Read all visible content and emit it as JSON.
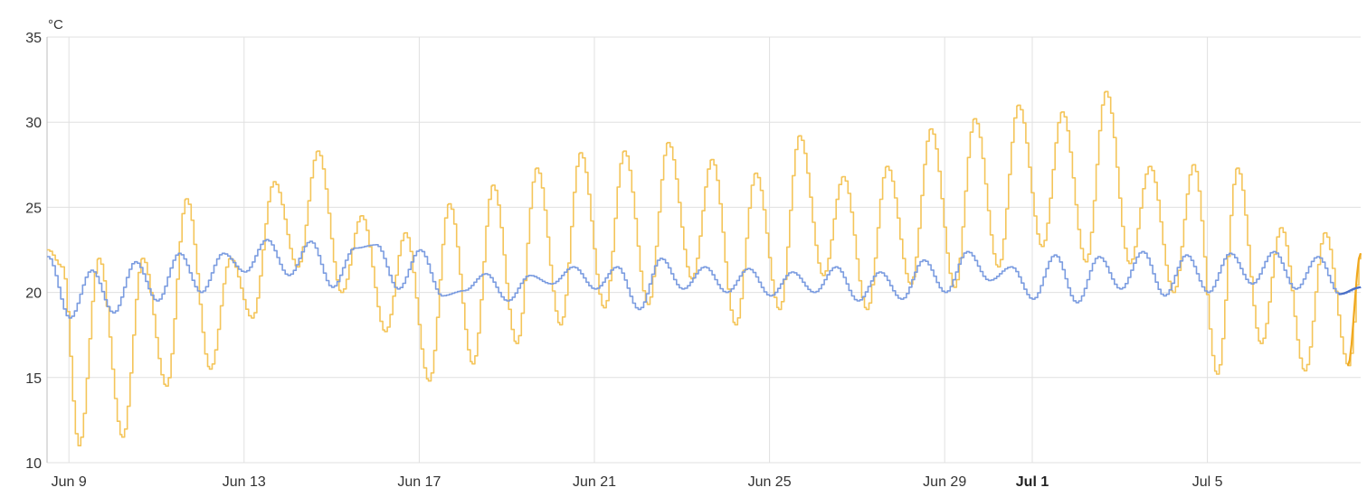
{
  "chart_data": {
    "type": "line",
    "title": "",
    "unit": "°C",
    "ylim": [
      10,
      35
    ],
    "xlim": [
      "2025-06-08T12:00",
      "2025-07-08T12:00"
    ],
    "y_ticks": [
      10,
      15,
      20,
      25,
      30,
      35
    ],
    "x_ticks": [
      {
        "label": "Jun 9",
        "date": "2025-06-09",
        "bold": false
      },
      {
        "label": "Jun 13",
        "date": "2025-06-13",
        "bold": false
      },
      {
        "label": "Jun 17",
        "date": "2025-06-17",
        "bold": false
      },
      {
        "label": "Jun 21",
        "date": "2025-06-21",
        "bold": false
      },
      {
        "label": "Jun 25",
        "date": "2025-06-25",
        "bold": false
      },
      {
        "label": "Jun 29",
        "date": "2025-06-29",
        "bold": false
      },
      {
        "label": "Jul 1",
        "date": "2025-07-01",
        "bold": true
      },
      {
        "label": "Jul 5",
        "date": "2025-07-05",
        "bold": false
      }
    ],
    "grid": true,
    "legend": "none",
    "series": [
      {
        "color": "#f4c55a",
        "highlight_color": "#f0a81e",
        "step": true,
        "x": [
          "2025-06-08T12:00",
          "2025-06-08T20:00",
          "2025-06-09T05:00",
          "2025-06-09T16:00",
          "2025-06-10T05:00",
          "2025-06-10T16:00",
          "2025-06-11T05:00",
          "2025-06-11T16:00",
          "2025-06-12T05:00",
          "2025-06-12T16:00",
          "2025-06-13T04:00",
          "2025-06-13T16:00",
          "2025-06-14T05:00",
          "2025-06-14T16:00",
          "2025-06-15T05:00",
          "2025-06-15T16:00",
          "2025-06-16T05:00",
          "2025-06-16T16:00",
          "2025-06-17T05:00",
          "2025-06-17T16:00",
          "2025-06-18T05:00",
          "2025-06-18T16:00",
          "2025-06-19T05:00",
          "2025-06-19T16:00",
          "2025-06-20T05:00",
          "2025-06-20T16:00",
          "2025-06-21T05:00",
          "2025-06-21T16:00",
          "2025-06-22T05:00",
          "2025-06-22T16:00",
          "2025-06-23T05:00",
          "2025-06-23T16:00",
          "2025-06-24T05:00",
          "2025-06-24T16:00",
          "2025-06-25T05:00",
          "2025-06-25T16:00",
          "2025-06-26T05:00",
          "2025-06-26T16:00",
          "2025-06-27T05:00",
          "2025-06-27T16:00",
          "2025-06-28T05:00",
          "2025-06-28T16:00",
          "2025-06-29T05:00",
          "2025-06-29T16:00",
          "2025-06-30T05:00",
          "2025-06-30T16:00",
          "2025-07-01T05:00",
          "2025-07-01T16:00",
          "2025-07-02T05:00",
          "2025-07-02T16:00",
          "2025-07-03T05:00",
          "2025-07-03T16:00",
          "2025-07-04T05:00",
          "2025-07-04T16:00",
          "2025-07-05T05:00",
          "2025-07-05T16:00",
          "2025-07-06T05:00",
          "2025-07-06T16:00",
          "2025-07-07T05:00",
          "2025-07-07T16:00",
          "2025-07-08T05:00",
          "2025-07-08T12:00"
        ],
        "y": [
          22.5,
          21.5,
          11,
          22,
          11.5,
          22,
          14.5,
          25.5,
          15.5,
          22,
          18.5,
          26.5,
          21.5,
          28.3,
          20,
          24.5,
          17.7,
          23.5,
          14.8,
          25.2,
          15.8,
          26.3,
          17,
          27.3,
          18.1,
          28.2,
          19.1,
          28.3,
          19.3,
          28.8,
          20.8,
          27.8,
          18.1,
          27,
          19,
          29.2,
          21,
          26.8,
          19,
          27.4,
          20.5,
          29.6,
          20.3,
          30.2,
          21.5,
          31,
          22.7,
          30.6,
          21.8,
          31.8,
          21.7,
          27.4,
          20,
          27.5,
          15.2,
          27.3,
          17,
          23.8,
          15.4,
          23.5,
          15.7,
          22.3
        ]
      },
      {
        "color": "#7b9ce0",
        "highlight_color": "#4a6fc7",
        "step": true,
        "x": [
          "2025-06-08T12:00",
          "2025-06-09T00:00",
          "2025-06-09T12:00",
          "2025-06-10T00:00",
          "2025-06-10T12:00",
          "2025-06-11T00:00",
          "2025-06-11T12:00",
          "2025-06-12T00:00",
          "2025-06-12T12:00",
          "2025-06-13T00:00",
          "2025-06-13T12:00",
          "2025-06-14T00:00",
          "2025-06-14T12:00",
          "2025-06-15T00:00",
          "2025-06-15T12:00",
          "2025-06-16T00:00",
          "2025-06-16T12:00",
          "2025-06-17T00:00",
          "2025-06-17T12:00",
          "2025-06-18T00:00",
          "2025-06-18T12:00",
          "2025-06-19T00:00",
          "2025-06-19T12:00",
          "2025-06-20T00:00",
          "2025-06-20T12:00",
          "2025-06-21T00:00",
          "2025-06-21T12:00",
          "2025-06-22T00:00",
          "2025-06-22T12:00",
          "2025-06-23T00:00",
          "2025-06-23T12:00",
          "2025-06-24T00:00",
          "2025-06-24T12:00",
          "2025-06-25T00:00",
          "2025-06-25T12:00",
          "2025-06-26T00:00",
          "2025-06-26T12:00",
          "2025-06-27T00:00",
          "2025-06-27T12:00",
          "2025-06-28T00:00",
          "2025-06-28T12:00",
          "2025-06-29T00:00",
          "2025-06-29T12:00",
          "2025-06-30T00:00",
          "2025-06-30T12:00",
          "2025-07-01T00:00",
          "2025-07-01T12:00",
          "2025-07-02T00:00",
          "2025-07-02T12:00",
          "2025-07-03T00:00",
          "2025-07-03T12:00",
          "2025-07-04T00:00",
          "2025-07-04T12:00",
          "2025-07-05T00:00",
          "2025-07-05T12:00",
          "2025-07-06T00:00",
          "2025-07-06T12:00",
          "2025-07-07T00:00",
          "2025-07-07T12:00",
          "2025-07-08T00:00",
          "2025-07-08T12:00"
        ],
        "y": [
          22.1,
          18.5,
          21.3,
          18.8,
          21.8,
          19.5,
          22.3,
          20,
          22.3,
          21.2,
          23.1,
          21,
          23,
          20.3,
          22.6,
          22.8,
          20.2,
          22.5,
          19.8,
          20.1,
          21.1,
          19.5,
          21,
          20.5,
          21.5,
          20.2,
          21.5,
          19,
          22,
          20.2,
          21.5,
          20,
          21.4,
          19.8,
          21.2,
          20,
          21.5,
          19.5,
          21.2,
          19.6,
          21.9,
          20,
          22.4,
          20.7,
          21.5,
          19.6,
          22.2,
          19.4,
          22.1,
          20.2,
          22.4,
          19.8,
          22.2,
          20,
          22.3,
          20.5,
          22.4,
          20.2,
          22.1,
          19.9,
          20.3
        ]
      }
    ]
  }
}
